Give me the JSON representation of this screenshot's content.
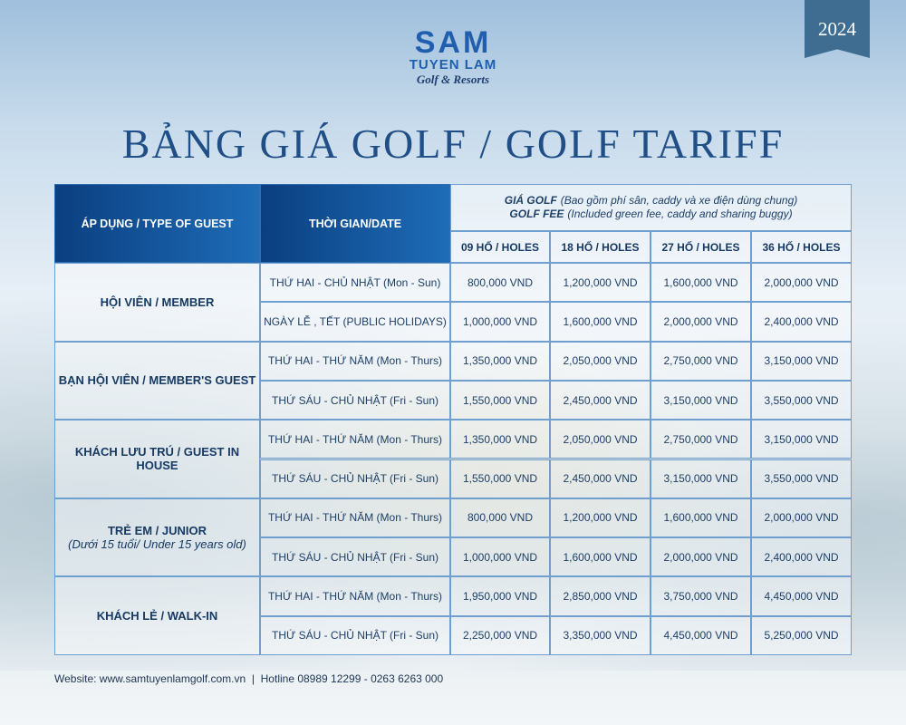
{
  "badge": "2024",
  "logo": {
    "name": "SAM",
    "sub": "TUYEN LAM",
    "tag": "Golf & Resorts"
  },
  "title": "BẢNG GIÁ GOLF / GOLF TARIFF",
  "table": {
    "guest_header": "ÁP DỤNG / TYPE OF GUEST",
    "date_header": "THỜI GIAN/DATE",
    "fee_header": {
      "vi_bold": "GIÁ GOLF",
      "vi_note": "(Bao gồm phí sân, caddy và xe điện dùng chung)",
      "en_bold": "GOLF FEE",
      "en_note": "(Included green fee, caddy and sharing buggy)"
    },
    "holes": [
      "09 HỐ / HOLES",
      "18 HỐ / HOLES",
      "27 HỐ / HOLES",
      "36 HỐ / HOLES"
    ],
    "groups": [
      {
        "guest": "HỘI VIÊN / MEMBER",
        "rows": [
          {
            "date": "THỨ HAI - CHỦ NHẬT (Mon - Sun)",
            "prices": [
              "800,000 VND",
              "1,200,000 VND",
              "1,600,000 VND",
              "2,000,000 VND"
            ]
          },
          {
            "date": "NGÀY LỄ , TẾT (PUBLIC HOLIDAYS)",
            "prices": [
              "1,000,000 VND",
              "1,600,000 VND",
              "2,000,000 VND",
              "2,400,000 VND"
            ]
          }
        ]
      },
      {
        "guest": "BẠN HỘI VIÊN / MEMBER'S GUEST",
        "rows": [
          {
            "date": "THỨ HAI - THỨ NĂM (Mon - Thurs)",
            "prices": [
              "1,350,000 VND",
              "2,050,000 VND",
              "2,750,000 VND",
              "3,150,000 VND"
            ]
          },
          {
            "date": "THỨ SÁU - CHỦ NHẬT (Fri - Sun)",
            "prices": [
              "1,550,000 VND",
              "2,450,000 VND",
              "3,150,000 VND",
              "3,550,000 VND"
            ]
          }
        ]
      },
      {
        "guest": "KHÁCH LƯU TRÚ / GUEST IN HOUSE",
        "rows": [
          {
            "date": "THỨ HAI - THỨ NĂM (Mon - Thurs)",
            "prices": [
              "1,350,000 VND",
              "2,050,000 VND",
              "2,750,000 VND",
              "3,150,000 VND"
            ]
          },
          {
            "date": "THỨ SÁU - CHỦ NHẬT (Fri - Sun)",
            "prices": [
              "1,550,000 VND",
              "2,450,000 VND",
              "3,150,000 VND",
              "3,550,000 VND"
            ]
          }
        ]
      },
      {
        "guest": "TRẺ EM / JUNIOR",
        "note": "(Dưới 15 tuổi/ Under 15 years old)",
        "rows": [
          {
            "date": "THỨ HAI - THỨ NĂM (Mon - Thurs)",
            "prices": [
              "800,000 VND",
              "1,200,000 VND",
              "1,600,000 VND",
              "2,000,000 VND"
            ]
          },
          {
            "date": "THỨ SÁU - CHỦ NHẬT (Fri - Sun)",
            "prices": [
              "1,000,000 VND",
              "1,600,000 VND",
              "2,000,000 VND",
              "2,400,000 VND"
            ]
          }
        ]
      },
      {
        "guest": "KHÁCH LẺ / WALK-IN",
        "rows": [
          {
            "date": "THỨ HAI - THỨ NĂM (Mon - Thurs)",
            "prices": [
              "1,950,000 VND",
              "2,850,000 VND",
              "3,750,000 VND",
              "4,450,000 VND"
            ]
          },
          {
            "date": "THỨ SÁU - CHỦ NHẬT (Fri - Sun)",
            "prices": [
              "2,250,000 VND",
              "3,350,000 VND",
              "4,450,000 VND",
              "5,250,000 VND"
            ]
          }
        ]
      }
    ]
  },
  "footer": "Website: www.samtuyenlamgolf.com.vn  |  Hotline 08989 12299 - 0263 6263 000"
}
